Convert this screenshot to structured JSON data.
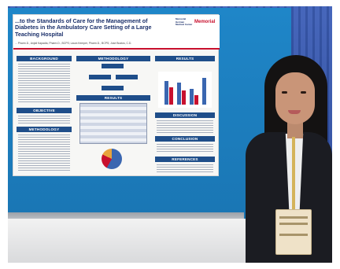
{
  "poster": {
    "title": "...to the Standards of Care for the Management of Diabetes in the Ambulatory Care Setting of a Large Teaching Hospital",
    "authors": "... Pharm.D., Anjali Kapadia, Pharm.D., BCPS; Laura Kemper, Pharm.D., BCPS; Jose Bustos, C.D.",
    "logo_text": "Memorial Herman Medical Center",
    "logo_brand": "Memorial",
    "sections": {
      "background": "BACKGROUND",
      "methodology": "METHODOLOGY",
      "results_top": "RESULTS",
      "results_mid": "RESULTS",
      "objective": "OBJECTIVE",
      "methodology_left": "METHODOLOGY",
      "discussion": "DISCUSSION",
      "conclusion": "CONCLUSION",
      "references": "REFERENCES"
    }
  },
  "colors": {
    "board": "#1f86c8",
    "poster_accent": "#1f4e8a",
    "poster_red": "#c8102e",
    "curtain": "#2f4fa4"
  }
}
